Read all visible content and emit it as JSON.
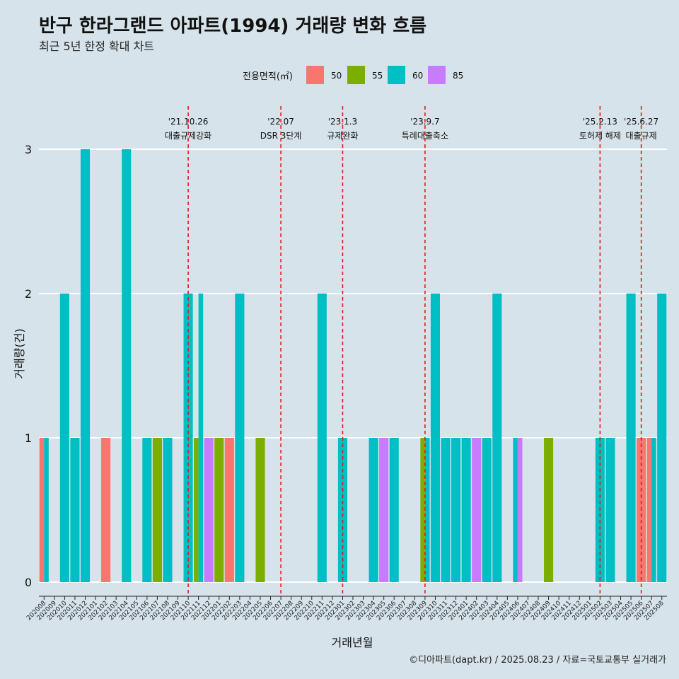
{
  "title": "반구 한라그랜드 아파트(1994) 거래량 변화 흐름",
  "subtitle": "최근 5년 한정 확대 차트",
  "credit": "©디아파트(dapt.kr) / 2025.08.23 / 자료=국토교통부 실거래가",
  "colors": {
    "50": "#f8766d",
    "55": "#7cae00",
    "60": "#00bfc4",
    "85": "#c77cff",
    "vline": "#e41a1c",
    "grid": "#ffffff"
  },
  "chart_data": {
    "type": "bar",
    "xlabel": "거래년월",
    "ylabel": "거래량(건)",
    "legend_title": "전용면적(㎡)",
    "legend_position": "top",
    "ylim": [
      0,
      3
    ],
    "yticks": [
      "0",
      "1",
      "2",
      "3"
    ],
    "grid": true,
    "categories": [
      "202008",
      "202009",
      "202010",
      "202011",
      "202012",
      "202101",
      "202102",
      "202103",
      "202104",
      "202105",
      "202106",
      "202107",
      "202108",
      "202109",
      "202110",
      "202111",
      "202112",
      "202201",
      "202202",
      "202203",
      "202204",
      "202205",
      "202206",
      "202207",
      "202208",
      "202209",
      "202210",
      "202211",
      "202212",
      "202301",
      "202302",
      "202303",
      "202304",
      "202305",
      "202306",
      "202307",
      "202308",
      "202309",
      "202310",
      "202311",
      "202312",
      "202401",
      "202402",
      "202403",
      "202404",
      "202405",
      "202406",
      "202407",
      "202408",
      "202409",
      "202410",
      "202411",
      "202412",
      "202501",
      "202502",
      "202503",
      "202504",
      "202505",
      "202506",
      "202507",
      "202508"
    ],
    "series": [
      {
        "name": "50",
        "values": [
          1,
          0,
          0,
          0,
          0,
          0,
          1,
          0,
          0,
          0,
          0,
          0,
          0,
          0,
          0,
          0,
          0,
          0,
          1,
          0,
          0,
          0,
          0,
          0,
          0,
          0,
          0,
          0,
          0,
          0,
          0,
          0,
          0,
          0,
          0,
          0,
          0,
          0,
          0,
          0,
          0,
          0,
          0,
          0,
          0,
          0,
          0,
          0,
          0,
          0,
          0,
          0,
          0,
          0,
          0,
          0,
          0,
          0,
          1,
          1,
          0
        ]
      },
      {
        "name": "55",
        "values": [
          0,
          0,
          0,
          0,
          0,
          0,
          0,
          0,
          0,
          0,
          0,
          1,
          0,
          0,
          0,
          1,
          0,
          1,
          0,
          0,
          0,
          1,
          0,
          0,
          0,
          0,
          0,
          0,
          0,
          0,
          0,
          0,
          0,
          0,
          0,
          0,
          0,
          1,
          0,
          0,
          0,
          0,
          0,
          0,
          0,
          0,
          0,
          0,
          0,
          1,
          0,
          0,
          0,
          0,
          0,
          0,
          0,
          0,
          0,
          0,
          0
        ]
      },
      {
        "name": "60",
        "values": [
          1,
          0,
          2,
          1,
          3,
          0,
          0,
          0,
          3,
          0,
          1,
          0,
          1,
          0,
          2,
          2,
          0,
          0,
          0,
          2,
          0,
          0,
          0,
          0,
          0,
          0,
          0,
          2,
          0,
          1,
          0,
          0,
          1,
          0,
          1,
          0,
          0,
          1,
          2,
          1,
          1,
          1,
          0,
          1,
          2,
          0,
          1,
          0,
          0,
          0,
          0,
          0,
          0,
          0,
          1,
          1,
          0,
          2,
          0,
          1,
          2
        ]
      },
      {
        "name": "85",
        "values": [
          0,
          0,
          0,
          0,
          0,
          0,
          0,
          0,
          0,
          0,
          0,
          0,
          0,
          0,
          0,
          0,
          1,
          0,
          0,
          0,
          0,
          0,
          0,
          0,
          0,
          0,
          0,
          0,
          0,
          0,
          0,
          0,
          0,
          1,
          0,
          0,
          0,
          0,
          0,
          0,
          0,
          0,
          1,
          0,
          0,
          0,
          1,
          0,
          0,
          0,
          0,
          0,
          0,
          0,
          0,
          0,
          0,
          0,
          0,
          0,
          0
        ]
      }
    ],
    "events": [
      {
        "x": "202110",
        "date": "'21.10.26",
        "label": "대출규제강화"
      },
      {
        "x": "202207",
        "date": "'22.07",
        "label": "DSR 3단계"
      },
      {
        "x": "202301",
        "date": "'23.1.3",
        "label": "규제완화"
      },
      {
        "x": "202309",
        "date": "'23.9.7",
        "label": "특례대출축소"
      },
      {
        "x": "202502",
        "date": "'25.2.13",
        "label": "토허제 해제"
      },
      {
        "x": "202506",
        "date": "'25.6.27",
        "label": "대출규제"
      }
    ]
  }
}
